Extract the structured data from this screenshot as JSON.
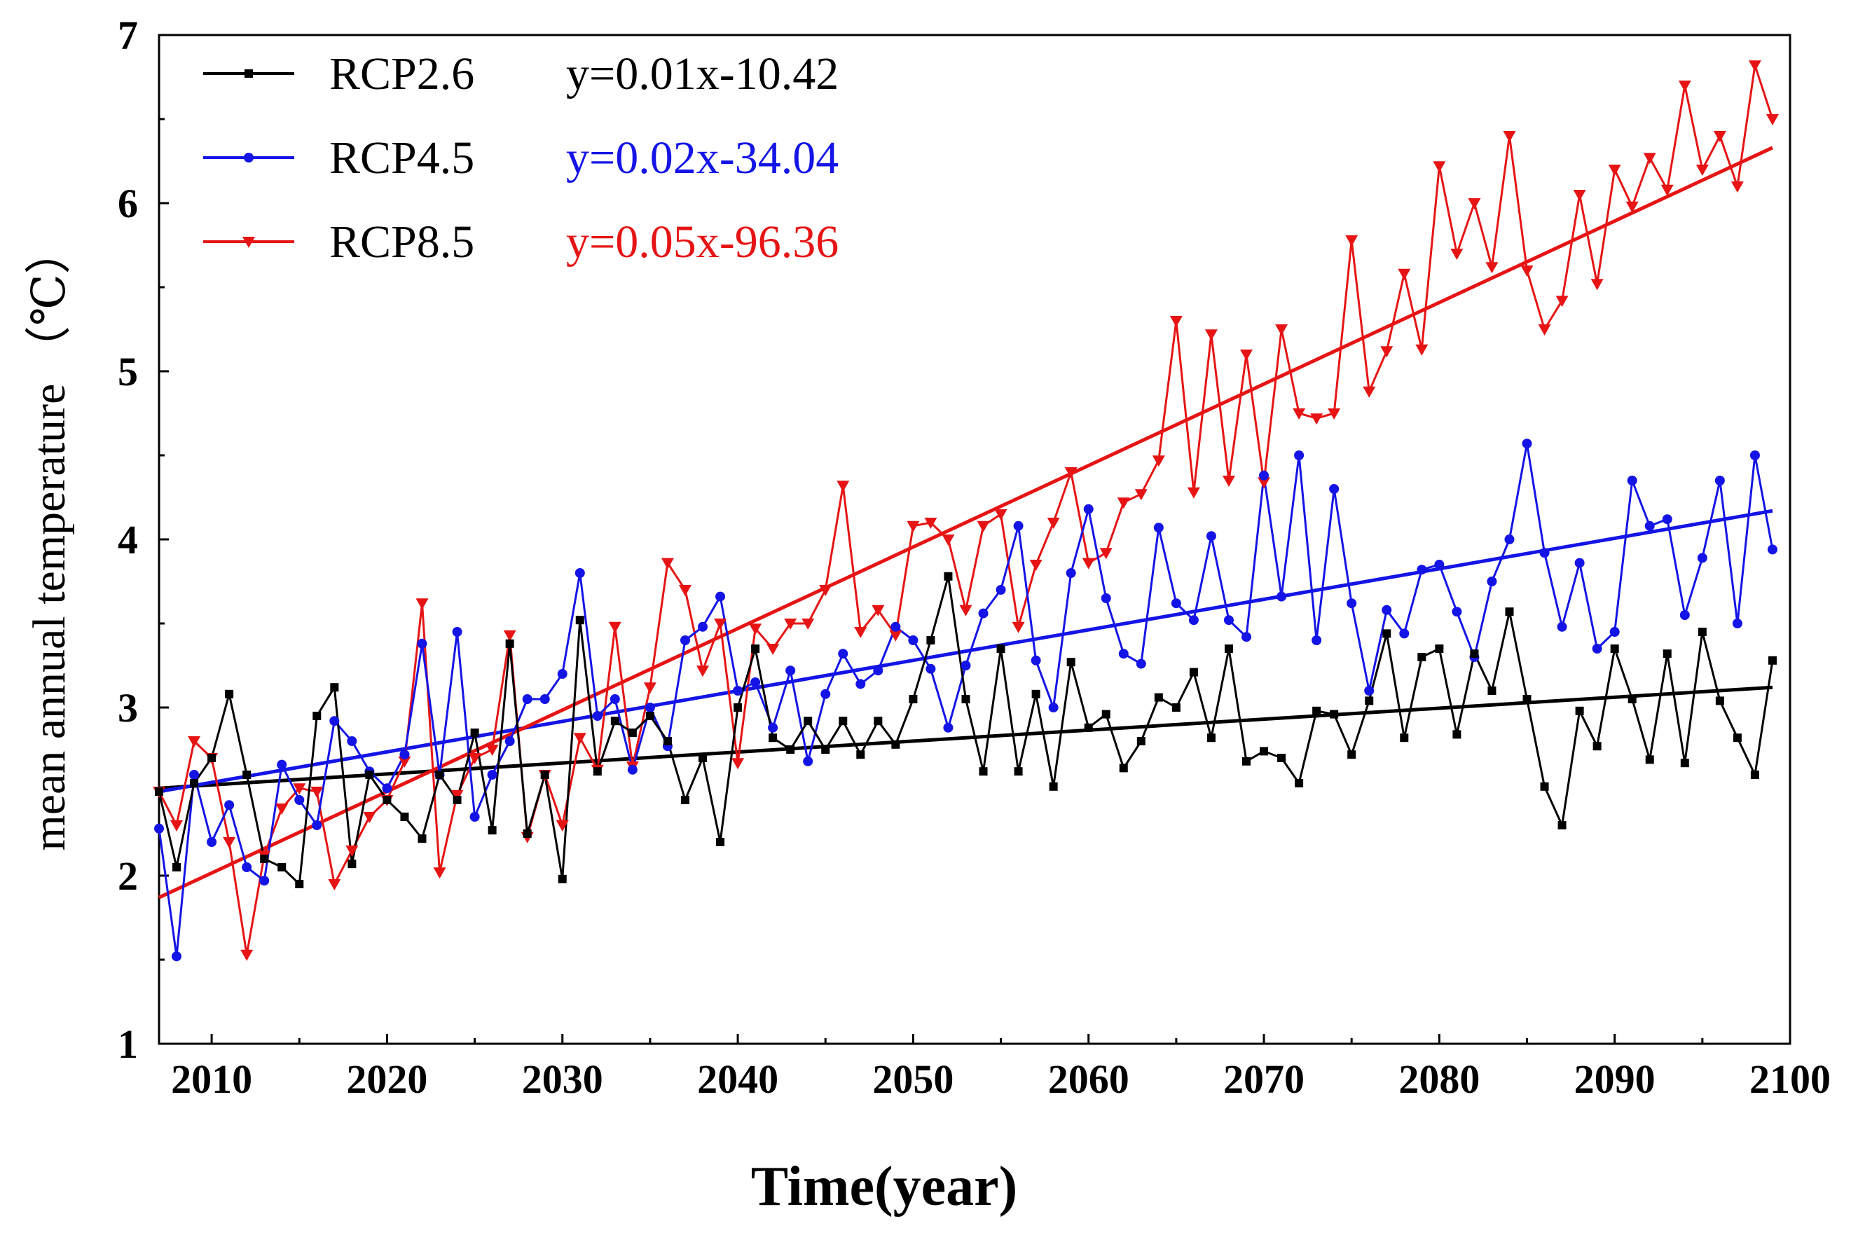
{
  "chart_data": {
    "type": "line",
    "title": "",
    "xlabel": "Time(year)",
    "ylabel": "mean annual temperature （℃）",
    "xlim": [
      2007,
      2100
    ],
    "ylim": [
      1,
      7
    ],
    "xticks": [
      2010,
      2020,
      2030,
      2040,
      2050,
      2060,
      2070,
      2080,
      2090,
      2100
    ],
    "yticks": [
      1,
      2,
      3,
      4,
      5,
      6,
      7
    ],
    "grid": false,
    "legend_position": "top-left",
    "x": [
      2007,
      2008,
      2009,
      2010,
      2011,
      2012,
      2013,
      2014,
      2015,
      2016,
      2017,
      2018,
      2019,
      2020,
      2021,
      2022,
      2023,
      2024,
      2025,
      2026,
      2027,
      2028,
      2029,
      2030,
      2031,
      2032,
      2033,
      2034,
      2035,
      2036,
      2037,
      2038,
      2039,
      2040,
      2041,
      2042,
      2043,
      2044,
      2045,
      2046,
      2047,
      2048,
      2049,
      2050,
      2051,
      2052,
      2053,
      2054,
      2055,
      2056,
      2057,
      2058,
      2059,
      2060,
      2061,
      2062,
      2063,
      2064,
      2065,
      2066,
      2067,
      2068,
      2069,
      2070,
      2071,
      2072,
      2073,
      2074,
      2075,
      2076,
      2077,
      2078,
      2079,
      2080,
      2081,
      2082,
      2083,
      2084,
      2085,
      2086,
      2087,
      2088,
      2089,
      2090,
      2091,
      2092,
      2093,
      2094,
      2095,
      2096,
      2097,
      2098,
      2099
    ],
    "series": [
      {
        "name": "RCP2.6",
        "color": "#000000",
        "marker": "square",
        "equation": "y=0.01x-10.42",
        "trend": [
          2.52,
          3.12
        ],
        "values": [
          2.5,
          2.05,
          2.55,
          2.7,
          3.08,
          2.6,
          2.1,
          2.05,
          1.95,
          2.95,
          3.12,
          2.07,
          2.6,
          2.45,
          2.35,
          2.22,
          2.6,
          2.45,
          2.85,
          2.27,
          3.38,
          2.25,
          2.6,
          1.98,
          3.52,
          2.62,
          2.92,
          2.85,
          2.95,
          2.8,
          2.45,
          2.7,
          2.2,
          3.0,
          3.35,
          2.82,
          2.75,
          2.92,
          2.75,
          2.92,
          2.72,
          2.92,
          2.78,
          3.05,
          3.4,
          3.78,
          3.05,
          2.62,
          3.35,
          2.62,
          3.08,
          2.53,
          3.27,
          2.88,
          2.96,
          2.64,
          2.8,
          3.06,
          3.0,
          3.21,
          2.82,
          3.35,
          2.68,
          2.74,
          2.7,
          2.55,
          2.98,
          2.96,
          2.72,
          3.04,
          3.44,
          2.82,
          3.3,
          3.35,
          2.84,
          3.32,
          3.1,
          3.57,
          3.05,
          2.53,
          2.3,
          2.98,
          2.77,
          3.35,
          3.05,
          2.69,
          3.32,
          2.67,
          3.45,
          3.04,
          2.82,
          2.6,
          3.28
        ]
      },
      {
        "name": "RCP4.5",
        "color": "#1414e6",
        "marker": "circle",
        "equation": "y=0.02x-34.04",
        "trend": [
          2.5,
          4.17
        ],
        "values": [
          2.28,
          1.52,
          2.6,
          2.2,
          2.42,
          2.05,
          1.97,
          2.66,
          2.45,
          2.3,
          2.92,
          2.8,
          2.62,
          2.52,
          2.72,
          3.38,
          2.6,
          3.45,
          2.35,
          2.6,
          2.8,
          3.05,
          3.05,
          3.2,
          3.8,
          2.95,
          3.05,
          2.63,
          3.0,
          2.77,
          3.4,
          3.48,
          3.66,
          3.1,
          3.15,
          2.88,
          3.22,
          2.68,
          3.08,
          3.32,
          3.14,
          3.22,
          3.48,
          3.4,
          3.23,
          2.88,
          3.25,
          3.56,
          3.7,
          4.08,
          3.28,
          3.0,
          3.8,
          4.18,
          3.65,
          3.32,
          3.26,
          4.07,
          3.62,
          3.52,
          4.02,
          3.52,
          3.42,
          4.38,
          3.66,
          4.5,
          3.4,
          4.3,
          3.62,
          3.1,
          3.58,
          3.44,
          3.82,
          3.85,
          3.57,
          3.3,
          3.75,
          4.0,
          4.57,
          3.92,
          3.48,
          3.86,
          3.35,
          3.45,
          4.35,
          4.08,
          4.12,
          3.55,
          3.89,
          4.35,
          3.5,
          4.5,
          3.94
        ]
      },
      {
        "name": "RCP8.5",
        "color": "#e61414",
        "marker": "triangle-down",
        "equation": "y=0.05x-96.36",
        "trend": [
          1.87,
          6.33
        ],
        "values": [
          2.5,
          2.3,
          2.8,
          2.7,
          2.2,
          1.53,
          2.12,
          2.4,
          2.52,
          2.5,
          1.95,
          2.15,
          2.35,
          2.45,
          2.68,
          3.62,
          2.02,
          2.48,
          2.7,
          2.75,
          3.43,
          2.23,
          2.6,
          2.3,
          2.82,
          2.63,
          3.48,
          2.65,
          3.12,
          3.86,
          3.7,
          3.22,
          3.5,
          2.67,
          3.47,
          3.35,
          3.5,
          3.5,
          3.7,
          4.32,
          3.45,
          3.58,
          3.43,
          4.08,
          4.1,
          4.0,
          3.58,
          4.08,
          4.15,
          3.48,
          3.85,
          4.1,
          4.4,
          3.86,
          3.92,
          4.22,
          4.27,
          4.47,
          5.3,
          4.28,
          5.22,
          4.35,
          5.1,
          4.34,
          5.25,
          4.75,
          4.72,
          4.75,
          5.78,
          4.88,
          5.12,
          5.58,
          5.13,
          6.22,
          5.7,
          6.0,
          5.62,
          6.4,
          5.6,
          5.25,
          5.42,
          6.05,
          5.52,
          6.2,
          5.98,
          6.27,
          6.08,
          6.7,
          6.2,
          6.4,
          6.1,
          6.82,
          6.5
        ]
      }
    ]
  }
}
